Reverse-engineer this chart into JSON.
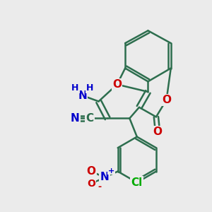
{
  "bg_color": "#ebebeb",
  "bond_color": "#2d6e4e",
  "bond_width": 1.8,
  "atom_colors": {
    "O": "#cc0000",
    "N": "#0000cc",
    "Cl": "#00aa00",
    "C": "#2d6e4e",
    "H": "#555555"
  }
}
